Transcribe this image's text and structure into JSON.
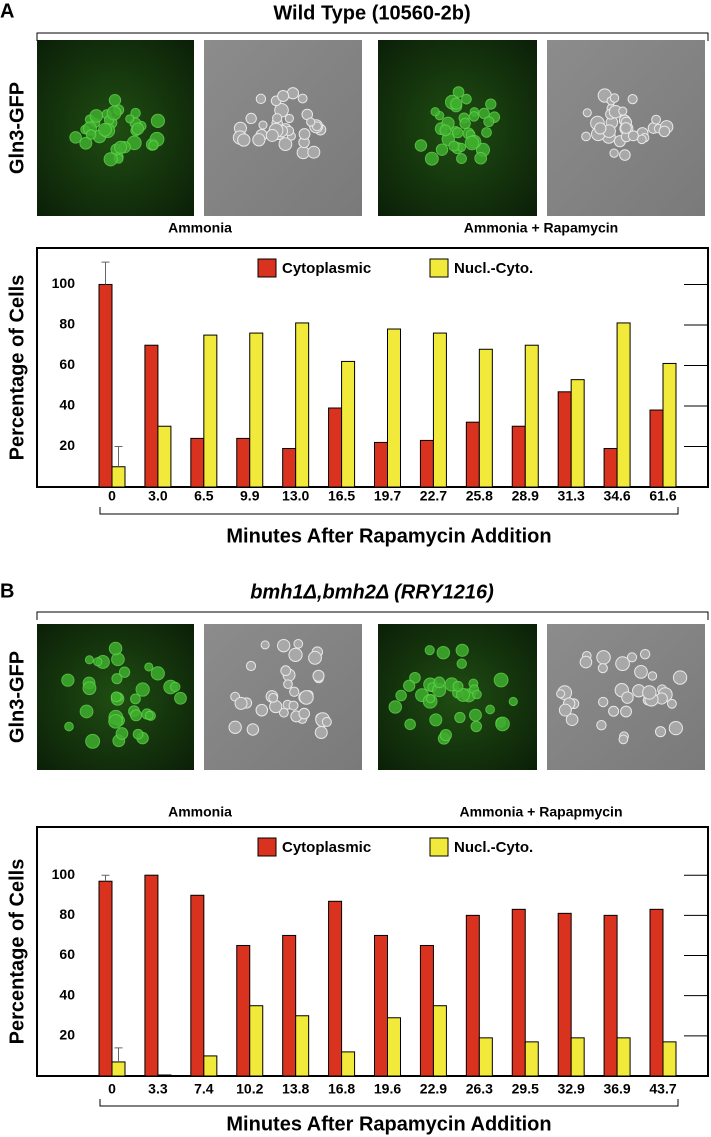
{
  "figure_panels": [
    {
      "label": "A",
      "title": "Wild Type (10560-2b)",
      "image_row_label": "Gln3-GFP",
      "image_labels": [
        "Ammonia",
        "Ammonia + Rapamycin"
      ]
    },
    {
      "label": "B",
      "title": "bmh1Δ,bmh2Δ (RRY1216)",
      "image_row_label": "Gln3-GFP",
      "image_labels": [
        "Ammonia",
        "Ammonia + Rapapmycin"
      ]
    }
  ],
  "chart_data": [
    {
      "type": "bar",
      "x_label": "Minutes After Rapamycin Addition",
      "y_label": "Percentage of Cells",
      "categories": [
        "0",
        "3.0",
        "6.5",
        "9.9",
        "13.0",
        "16.5",
        "19.7",
        "22.7",
        "25.8",
        "28.9",
        "31.3",
        "34.6",
        "61.6"
      ],
      "series": [
        {
          "name": "Cytoplasmic",
          "color": "#d9321e",
          "values": [
            100,
            70,
            24,
            24,
            19,
            39,
            22,
            23,
            32,
            30,
            47,
            19,
            38
          ],
          "errors": [
            11,
            null,
            null,
            null,
            null,
            null,
            null,
            null,
            null,
            null,
            null,
            null,
            null
          ]
        },
        {
          "name": "Nucl.-Cyto.",
          "color": "#f2ea3a",
          "values": [
            10,
            30,
            75,
            76,
            81,
            62,
            78,
            76,
            68,
            70,
            53,
            81,
            61
          ],
          "errors": [
            10,
            null,
            null,
            null,
            null,
            null,
            null,
            null,
            null,
            null,
            null,
            null,
            null
          ]
        }
      ],
      "ylim": [
        0,
        118
      ],
      "yticks": [
        20,
        40,
        60,
        80,
        100
      ],
      "legend": "top"
    },
    {
      "type": "bar",
      "x_label": "Minutes After Rapamycin Addition",
      "y_label": "Percentage of Cells",
      "categories": [
        "0",
        "3.3",
        "7.4",
        "10.2",
        "13.8",
        "16.8",
        "19.6",
        "22.9",
        "26.3",
        "29.5",
        "32.9",
        "36.9",
        "43.7"
      ],
      "series": [
        {
          "name": "Cytoplasmic",
          "color": "#d9321e",
          "values": [
            97,
            100,
            90,
            65,
            70,
            87,
            70,
            65,
            80,
            83,
            81,
            80,
            83
          ],
          "errors": [
            3,
            null,
            null,
            null,
            null,
            null,
            null,
            null,
            null,
            null,
            null,
            null,
            null
          ]
        },
        {
          "name": "Nucl.-Cyto.",
          "color": "#f2ea3a",
          "values": [
            7,
            0.5,
            10,
            35,
            30,
            12,
            29,
            35,
            19,
            17,
            19,
            19,
            17
          ],
          "errors": [
            7,
            null,
            null,
            null,
            null,
            null,
            null,
            null,
            null,
            null,
            null,
            null,
            null
          ]
        }
      ],
      "ylim": [
        0,
        124
      ],
      "yticks": [
        20,
        40,
        60,
        80,
        100
      ],
      "legend": "top"
    }
  ]
}
